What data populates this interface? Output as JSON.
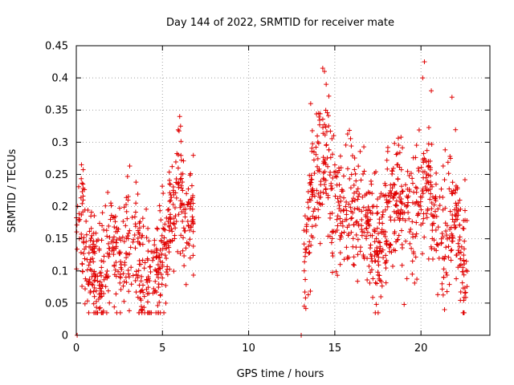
{
  "chart_data": {
    "type": "scatter",
    "title": "Day 144 of 2022, SRMTID for receiver mate",
    "xlabel": "GPS time / hours",
    "ylabel": "SRMTID / TECUs",
    "xlim": [
      0,
      24
    ],
    "ylim": [
      0,
      0.45
    ],
    "x_ticks": [
      0,
      5,
      10,
      15,
      20
    ],
    "x_tick_labels": [
      "0",
      "5",
      "10",
      "15",
      "20"
    ],
    "y_ticks": [
      0,
      0.05,
      0.1,
      0.15,
      0.2,
      0.25,
      0.3,
      0.35,
      0.4,
      0.45
    ],
    "y_tick_labels": [
      "0",
      "0.05",
      "0.1",
      "0.15",
      "0.2",
      "0.25",
      "0.3",
      "0.35",
      "0.4",
      "0.45"
    ],
    "grid": true,
    "marker": "+",
    "color": "#e00000",
    "series": [
      {
        "name": "SRMTID",
        "segments": [
          {
            "x_start": 0.0,
            "x_end": 6.8,
            "anchors": [
              {
                "x": 0.0,
                "y": 0.18
              },
              {
                "x": 0.3,
                "y": 0.2
              },
              {
                "x": 0.6,
                "y": 0.1
              },
              {
                "x": 1.0,
                "y": 0.11
              },
              {
                "x": 1.4,
                "y": 0.08
              },
              {
                "x": 1.8,
                "y": 0.12
              },
              {
                "x": 2.2,
                "y": 0.14
              },
              {
                "x": 2.6,
                "y": 0.12
              },
              {
                "x": 3.0,
                "y": 0.15
              },
              {
                "x": 3.4,
                "y": 0.13
              },
              {
                "x": 3.8,
                "y": 0.1
              },
              {
                "x": 4.3,
                "y": 0.09
              },
              {
                "x": 4.8,
                "y": 0.1
              },
              {
                "x": 5.2,
                "y": 0.14
              },
              {
                "x": 5.6,
                "y": 0.2
              },
              {
                "x": 6.0,
                "y": 0.23
              },
              {
                "x": 6.4,
                "y": 0.19
              },
              {
                "x": 6.8,
                "y": 0.16
              }
            ],
            "spread": 0.045
          },
          {
            "x_start": 13.2,
            "x_end": 22.7,
            "anchors": [
              {
                "x": 13.2,
                "y": 0.1
              },
              {
                "x": 13.6,
                "y": 0.2
              },
              {
                "x": 14.0,
                "y": 0.25
              },
              {
                "x": 14.4,
                "y": 0.28
              },
              {
                "x": 14.8,
                "y": 0.21
              },
              {
                "x": 15.3,
                "y": 0.19
              },
              {
                "x": 15.8,
                "y": 0.2
              },
              {
                "x": 16.3,
                "y": 0.18
              },
              {
                "x": 16.8,
                "y": 0.2
              },
              {
                "x": 17.2,
                "y": 0.14
              },
              {
                "x": 17.6,
                "y": 0.13
              },
              {
                "x": 18.0,
                "y": 0.18
              },
              {
                "x": 18.5,
                "y": 0.22
              },
              {
                "x": 19.0,
                "y": 0.2
              },
              {
                "x": 19.5,
                "y": 0.19
              },
              {
                "x": 20.0,
                "y": 0.22
              },
              {
                "x": 20.5,
                "y": 0.24
              },
              {
                "x": 21.0,
                "y": 0.17
              },
              {
                "x": 21.5,
                "y": 0.16
              },
              {
                "x": 22.0,
                "y": 0.2
              },
              {
                "x": 22.4,
                "y": 0.12
              },
              {
                "x": 22.7,
                "y": 0.1
              }
            ],
            "spread": 0.05
          }
        ],
        "peaks": [
          {
            "x": 6.0,
            "y": 0.34
          },
          {
            "x": 6.05,
            "y": 0.325
          },
          {
            "x": 3.1,
            "y": 0.263
          },
          {
            "x": 0.3,
            "y": 0.265
          },
          {
            "x": 14.3,
            "y": 0.415
          },
          {
            "x": 14.4,
            "y": 0.41
          },
          {
            "x": 20.2,
            "y": 0.425
          },
          {
            "x": 20.1,
            "y": 0.4
          },
          {
            "x": 14.5,
            "y": 0.39
          },
          {
            "x": 20.6,
            "y": 0.38
          },
          {
            "x": 21.8,
            "y": 0.37
          },
          {
            "x": 13.6,
            "y": 0.36
          }
        ],
        "zero_markers": [
          {
            "x": 0.05,
            "y": 0.0
          },
          {
            "x": 13.05,
            "y": 0.0
          }
        ]
      }
    ]
  }
}
